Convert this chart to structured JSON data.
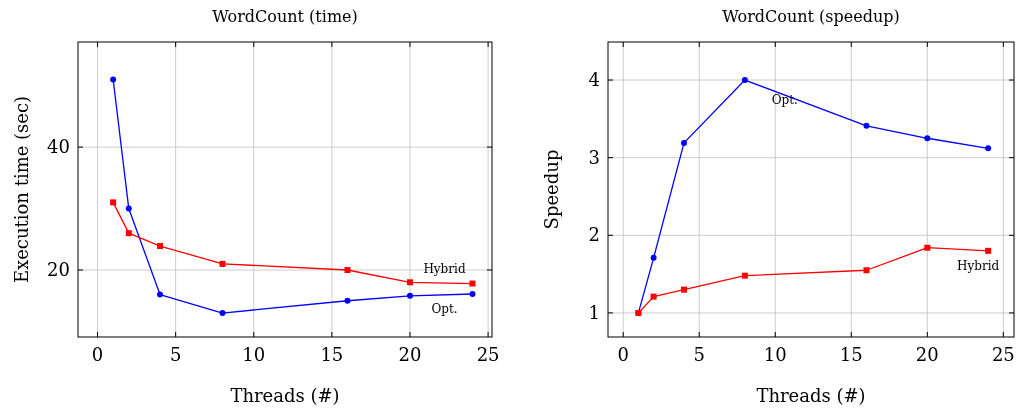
{
  "chart_data": [
    {
      "type": "line",
      "title": "WordCount (time)",
      "xlabel": "Threads (#)",
      "ylabel": "Execution time (sec)",
      "x": [
        1,
        2,
        4,
        8,
        16,
        20,
        24
      ],
      "xlim": [
        -1.25,
        25.25
      ],
      "ylim": [
        9.1,
        57.1
      ],
      "xticks": [
        0,
        5,
        10,
        15,
        20,
        25
      ],
      "yticks": [
        20,
        40
      ],
      "grid": true,
      "series": [
        {
          "name": "Opt.",
          "color": "#0000ff",
          "marker": "circle",
          "values": [
            51,
            30,
            16,
            13,
            15,
            15.8,
            16.1
          ]
        },
        {
          "name": "Hybrid",
          "color": "#ff0000",
          "marker": "square",
          "values": [
            31,
            26,
            23.9,
            21,
            20,
            18,
            17.8
          ]
        }
      ]
    },
    {
      "type": "line",
      "title": "WordCount (speedup)",
      "xlabel": "Threads (#)",
      "ylabel": "Speedup",
      "x": [
        1,
        2,
        4,
        8,
        16,
        20,
        24
      ],
      "xlim": [
        -1,
        25.7
      ],
      "ylim": [
        0.69,
        4.49
      ],
      "xticks": [
        0,
        5,
        10,
        15,
        20,
        25
      ],
      "yticks": [
        1,
        2,
        3,
        4
      ],
      "grid": true,
      "series": [
        {
          "name": "Opt.",
          "color": "#0000ff",
          "marker": "circle",
          "values": [
            1,
            1.71,
            3.19,
            4,
            3.41,
            3.25,
            3.12
          ]
        },
        {
          "name": "Hybrid",
          "color": "#ff0000",
          "marker": "square",
          "values": [
            1,
            1.21,
            1.3,
            1.48,
            1.55,
            1.84,
            1.8
          ]
        }
      ]
    }
  ]
}
